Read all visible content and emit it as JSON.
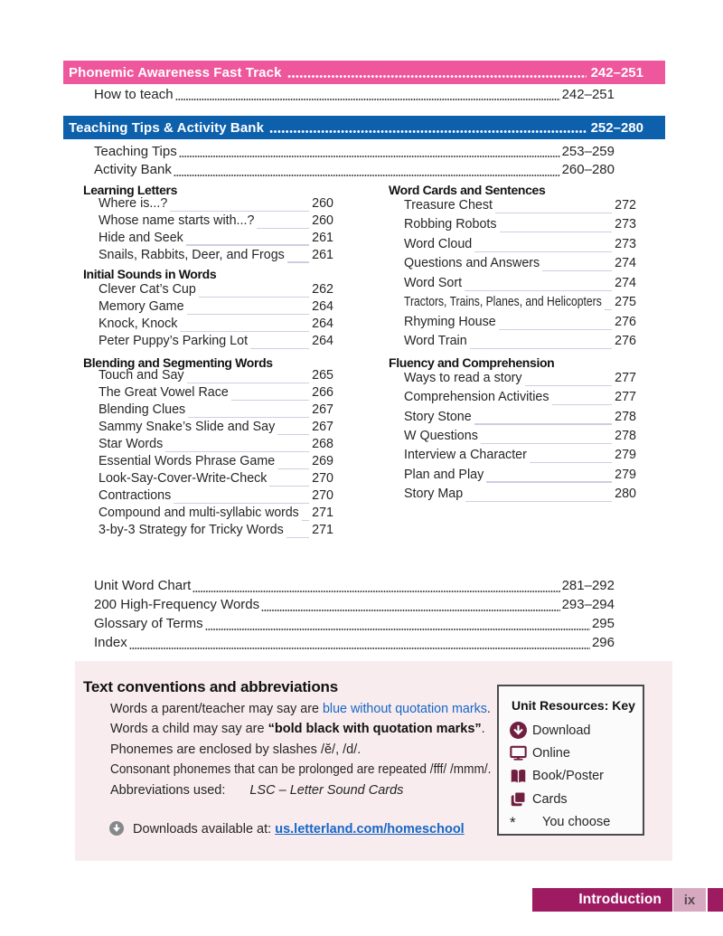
{
  "colors": {
    "banner_pink": "#ee579c",
    "banner_blue": "#0d60ac",
    "footer_magenta": "#9e1b62",
    "icon_burgundy": "#6f1f40",
    "conventions_box_bg": "#f8ecef",
    "blue_text": "#1767c5",
    "page_tab_pink": "#d7a9c0"
  },
  "toc": {
    "banner1": {
      "label": "Phonemic Awareness Fast Track",
      "pages": "242–251"
    },
    "banner1_rows": [
      {
        "label": "How to teach",
        "pages": "242–251"
      }
    ],
    "banner2": {
      "label": "Teaching Tips & Activity Bank",
      "pages": "252–280"
    },
    "banner2_rows": [
      {
        "label": "Teaching Tips",
        "pages": "253–259"
      },
      {
        "label": "Activity Bank",
        "pages": "260–280"
      }
    ],
    "left_column": [
      {
        "heading": "Learning Letters",
        "items": [
          {
            "label": "Where is...?",
            "page": "260"
          },
          {
            "label": "Whose name starts with...?",
            "page": "260"
          },
          {
            "label": "Hide and Seek",
            "page": "261"
          },
          {
            "label": "Snails, Rabbits, Deer, and Frogs",
            "page": "261"
          }
        ]
      },
      {
        "heading": "Initial Sounds in Words",
        "items": [
          {
            "label": "Clever Cat’s Cup",
            "page": "262"
          },
          {
            "label": "Memory Game",
            "page": "264"
          },
          {
            "label": "Knock, Knock",
            "page": "264"
          },
          {
            "label": "Peter Puppy’s Parking Lot",
            "page": "264"
          }
        ]
      },
      {
        "heading": "Blending and Segmenting Words",
        "items": [
          {
            "label": "Touch and Say",
            "page": "265"
          },
          {
            "label": "The Great Vowel Race",
            "page": "266"
          },
          {
            "label": "Blending Clues",
            "page": "267"
          },
          {
            "label": "Sammy Snake’s Slide and Say",
            "page": "267"
          },
          {
            "label": "Star Words",
            "page": "268"
          },
          {
            "label": "Essential Words Phrase Game",
            "page": "269"
          },
          {
            "label": "Look-Say-Cover-Write-Check",
            "page": "270"
          },
          {
            "label": "Contractions",
            "page": "270"
          },
          {
            "label": "Compound and multi-syllabic words",
            "page": "271"
          },
          {
            "label": "3-by-3 Strategy for Tricky Words",
            "page": "271"
          }
        ]
      }
    ],
    "right_column": [
      {
        "heading": "Word Cards and Sentences",
        "items": [
          {
            "label": "Treasure Chest",
            "page": "272"
          },
          {
            "label": "Robbing Robots",
            "page": "273"
          },
          {
            "label": "Word Cloud",
            "page": "273"
          },
          {
            "label": "Questions and Answers",
            "page": "274"
          },
          {
            "label": "Word Sort",
            "page": "274"
          },
          {
            "label": "Tractors, Trains, Planes, and Helicopters",
            "page": "275"
          },
          {
            "label": "Rhyming House",
            "page": "276"
          },
          {
            "label": "Word Train",
            "page": "276"
          }
        ]
      },
      {
        "heading": "Fluency and Comprehension",
        "items": [
          {
            "label": "Ways to read a story",
            "page": "277"
          },
          {
            "label": "Comprehension Activities",
            "page": "277"
          },
          {
            "label": "Story Stone",
            "page": "278"
          },
          {
            "label": "W Questions",
            "page": "278"
          },
          {
            "label": "Interview a Character",
            "page": "279"
          },
          {
            "label": "Plan and Play",
            "page": "279"
          },
          {
            "label": "Story Map",
            "page": "280"
          }
        ]
      }
    ],
    "end_rows": [
      {
        "label": "Unit Word Chart",
        "pages": "281–292"
      },
      {
        "label": "200 High-Frequency Words",
        "pages": "293–294"
      },
      {
        "label": "Glossary of Terms",
        "pages": "295"
      },
      {
        "label": "Index",
        "pages": "296"
      }
    ]
  },
  "conventions": {
    "title": "Text conventions and abbreviations",
    "lines": [
      {
        "parts": [
          {
            "t": "Words a parent/teacher may say are ",
            "s": "plain"
          },
          {
            "t": "blue without quotation marks",
            "s": "blue"
          },
          {
            "t": ".",
            "s": "plain"
          }
        ]
      },
      {
        "parts": [
          {
            "t": "Words a child may say are ",
            "s": "plain"
          },
          {
            "t": "“bold black with quotation marks”",
            "s": "boldblack"
          },
          {
            "t": ".",
            "s": "plain"
          }
        ]
      },
      {
        "parts": [
          {
            "t": "Phonemes are enclosed by slashes /ĕ/, /d/.",
            "s": "plain"
          }
        ]
      },
      {
        "parts": [
          {
            "t": "Consonant phonemes that can be prolonged are repeated /fff/ /mmm/.",
            "s": "plain"
          }
        ]
      },
      {
        "parts": [
          {
            "t": "Abbreviations used:",
            "s": "plain"
          },
          {
            "t": "LSC – Letter Sound Cards",
            "s": "italic",
            "gap": 27
          }
        ]
      }
    ],
    "downloads": {
      "icon": "download-circle-icon",
      "text": "Downloads available at: ",
      "link": "us.letterland.com/homeschool"
    }
  },
  "resources_key": {
    "title": "Unit Resources: Key",
    "items": [
      {
        "icon": "download-circle-icon",
        "label": "Download"
      },
      {
        "icon": "monitor-icon",
        "label": "Online"
      },
      {
        "icon": "open-book-icon",
        "label": "Book/Poster"
      },
      {
        "icon": "cards-icon",
        "label": "Cards"
      },
      {
        "icon": "asterisk-icon",
        "label": "You choose"
      }
    ]
  },
  "footer": {
    "section": "Introduction",
    "page_number": "ix"
  }
}
